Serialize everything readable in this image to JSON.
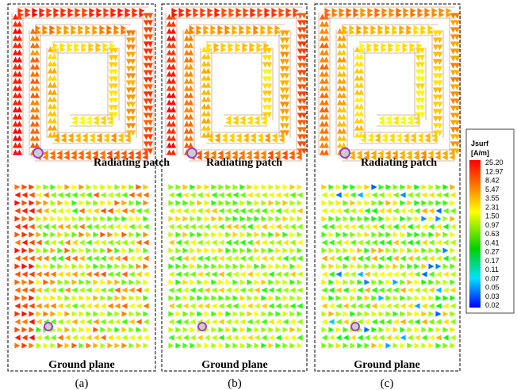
{
  "panels": [
    {
      "top_label": "Radiating patch",
      "bottom_label": "Ground plane",
      "caption": "(a)"
    },
    {
      "top_label": "Radiating patch",
      "bottom_label": "Ground plane",
      "caption": "(b)"
    },
    {
      "top_label": "Radiating patch",
      "bottom_label": "Ground plane",
      "caption": "(c)"
    }
  ],
  "colorbar": {
    "title": "Jsurf",
    "unit": "[A/m]",
    "ticks": [
      "25.20",
      "12.97",
      "8.42",
      "5.47",
      "3.55",
      "2.31",
      "1.50",
      "0.97",
      "0.63",
      "0.41",
      "0.27",
      "0.17",
      "0.11",
      "0.07",
      "0.05",
      "0.03",
      "0.02"
    ]
  }
}
